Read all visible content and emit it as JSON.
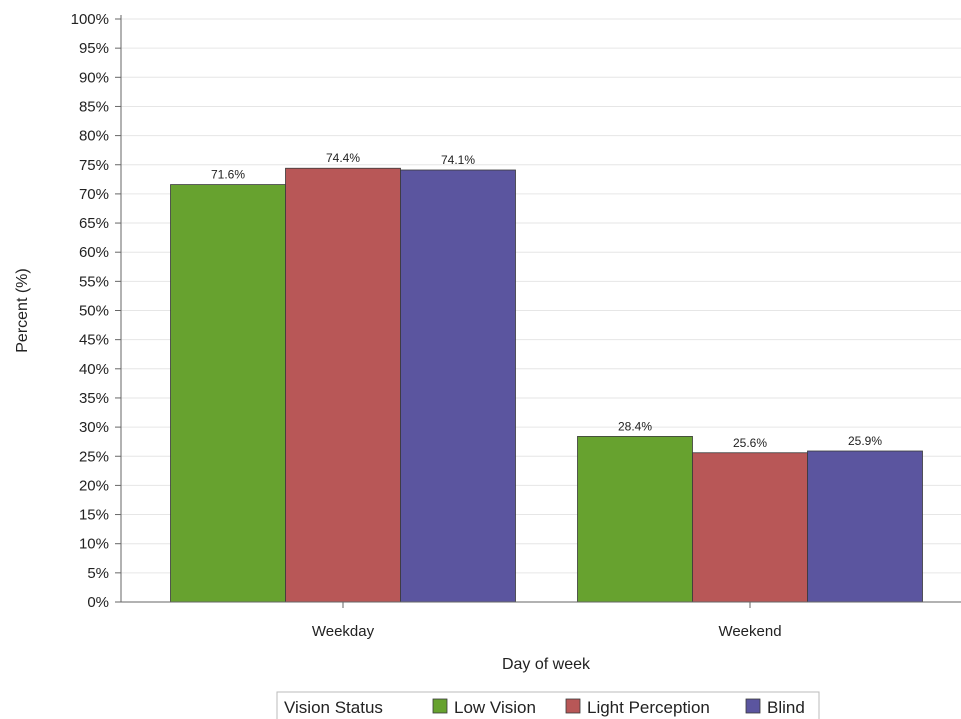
{
  "chart_data": {
    "type": "bar",
    "categories": [
      "Weekday",
      "Weekend"
    ],
    "series": [
      {
        "name": "Low Vision",
        "values": [
          71.6,
          28.4
        ],
        "labels": [
          "71.6%",
          "28.4%"
        ],
        "color": "#67a22f"
      },
      {
        "name": "Light Perception",
        "values": [
          74.4,
          25.6
        ],
        "labels": [
          "74.4%",
          "25.6%"
        ],
        "color": "#b85757"
      },
      {
        "name": "Blind",
        "values": [
          74.1,
          25.9
        ],
        "labels": [
          "74.1%",
          "25.9%"
        ],
        "color": "#5b559f"
      }
    ],
    "xlabel": "Day of week",
    "ylabel": "Percent (%)",
    "ylim": [
      0,
      100
    ],
    "yticks": [
      "0%",
      "5%",
      "10%",
      "15%",
      "20%",
      "25%",
      "30%",
      "35%",
      "40%",
      "45%",
      "50%",
      "55%",
      "60%",
      "65%",
      "70%",
      "75%",
      "80%",
      "85%",
      "90%",
      "95%",
      "100%"
    ],
    "grid": true,
    "legend": {
      "title": "Vision Status",
      "position": "bottom"
    }
  }
}
